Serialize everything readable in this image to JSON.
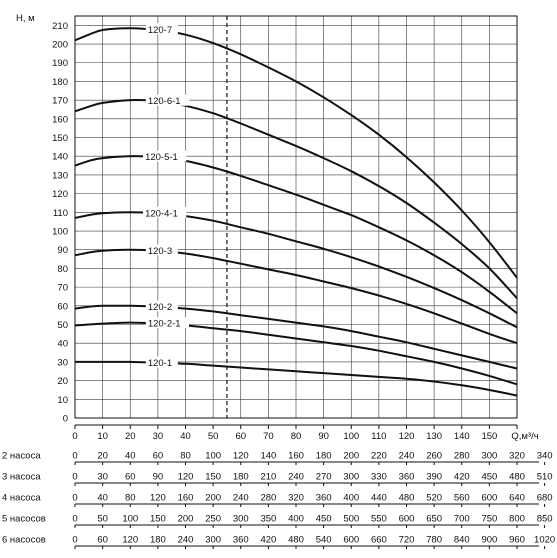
{
  "chart_data": {
    "type": "line",
    "title": "",
    "ylabel": "H, м",
    "xlabel": "Q,м³/ч",
    "xlim": [
      0,
      160
    ],
    "ylim": [
      0,
      215
    ],
    "x_ticks": [
      0,
      10,
      20,
      30,
      40,
      50,
      60,
      70,
      80,
      90,
      100,
      110,
      120,
      130,
      140,
      150
    ],
    "y_ticks": [
      0,
      10,
      20,
      30,
      40,
      50,
      60,
      70,
      80,
      90,
      100,
      110,
      120,
      130,
      140,
      150,
      160,
      170,
      180,
      190,
      200,
      210
    ],
    "grid": true,
    "reference_line_x": 55,
    "series": [
      {
        "name": "120-7",
        "x": [
          0,
          5,
          10,
          20,
          30,
          40,
          50,
          60,
          70,
          80,
          90,
          100,
          110,
          120,
          130,
          140,
          150,
          160
        ],
        "y": [
          202,
          205,
          207.5,
          208.5,
          207.5,
          205,
          200.5,
          194.5,
          187.5,
          180,
          171.5,
          162,
          151.5,
          139.5,
          126,
          111,
          94,
          75
        ]
      },
      {
        "name": "120-6-1",
        "x": [
          0,
          5,
          10,
          20,
          30,
          40,
          50,
          60,
          70,
          80,
          90,
          100,
          110,
          120,
          130,
          140,
          150,
          160
        ],
        "y": [
          164,
          166.5,
          168.5,
          170,
          169.5,
          167,
          163,
          157.5,
          151.5,
          145.5,
          139,
          132,
          124,
          115,
          104.5,
          93,
          80,
          64
        ]
      },
      {
        "name": "120-5-1",
        "x": [
          0,
          5,
          10,
          20,
          30,
          40,
          50,
          60,
          70,
          80,
          90,
          100,
          110,
          120,
          130,
          140,
          150,
          160
        ],
        "y": [
          135,
          137.5,
          139,
          140,
          139.5,
          137.5,
          134,
          129.5,
          124.5,
          119.5,
          114,
          108.5,
          102,
          95,
          87,
          78,
          67.5,
          56
        ]
      },
      {
        "name": "120-4-1",
        "x": [
          0,
          5,
          10,
          20,
          30,
          40,
          50,
          60,
          70,
          80,
          90,
          100,
          110,
          120,
          130,
          140,
          150,
          160
        ],
        "y": [
          107,
          108.5,
          109.5,
          110,
          109.5,
          108,
          105.5,
          102,
          98.5,
          94.5,
          90.5,
          86,
          81,
          75.5,
          69.5,
          63,
          56,
          48.5
        ]
      },
      {
        "name": "120-3",
        "x": [
          0,
          5,
          10,
          20,
          30,
          40,
          50,
          60,
          70,
          80,
          90,
          100,
          110,
          120,
          130,
          140,
          150,
          160
        ],
        "y": [
          87,
          88.5,
          89.5,
          90,
          89.5,
          88,
          85.5,
          82.5,
          79.5,
          76.5,
          73,
          69.5,
          65.5,
          61,
          56,
          50.5,
          45,
          40
        ]
      },
      {
        "name": "120-2",
        "x": [
          0,
          5,
          10,
          20,
          30,
          40,
          50,
          60,
          70,
          80,
          90,
          100,
          110,
          120,
          130,
          140,
          150,
          160
        ],
        "y": [
          58.5,
          59.5,
          60,
          60,
          59.5,
          58.5,
          57,
          55,
          53,
          51,
          49,
          46.5,
          43.5,
          40.5,
          37,
          33.5,
          30,
          26.5
        ]
      },
      {
        "name": "120-2-1",
        "x": [
          0,
          5,
          10,
          20,
          30,
          40,
          50,
          60,
          70,
          80,
          90,
          100,
          110,
          120,
          130,
          140,
          150,
          160
        ],
        "y": [
          49.5,
          50,
          50.5,
          51,
          50.5,
          49.5,
          48,
          46.5,
          44.5,
          42.5,
          40.5,
          38.5,
          36,
          33,
          30,
          26.5,
          22.5,
          18
        ]
      },
      {
        "name": "120-1",
        "x": [
          0,
          10,
          20,
          30,
          40,
          50,
          60,
          70,
          80,
          90,
          100,
          110,
          120,
          130,
          140,
          150,
          160
        ],
        "y": [
          30,
          30,
          30,
          29.5,
          29,
          28,
          27,
          26,
          25,
          24,
          23,
          22,
          21,
          19.5,
          17.5,
          15,
          12
        ]
      }
    ],
    "qaxis_tail_ticks": [
      "Q,м³/ч"
    ],
    "multi_pump_rows": [
      {
        "label": "2 насоса",
        "values": [
          "0",
          "20",
          "40",
          "60",
          "80",
          "100",
          "120",
          "140",
          "160",
          "180",
          "200",
          "220",
          "240",
          "260",
          "280",
          "300",
          "320",
          "340"
        ]
      },
      {
        "label": "3 насоса",
        "values": [
          "0",
          "30",
          "60",
          "90",
          "120",
          "150",
          "180",
          "210",
          "240",
          "270",
          "300",
          "330",
          "360",
          "390",
          "420",
          "450",
          "480",
          "510"
        ]
      },
      {
        "label": "4 насоса",
        "values": [
          "0",
          "40",
          "80",
          "120",
          "160",
          "200",
          "240",
          "280",
          "320",
          "360",
          "400",
          "440",
          "480",
          "520",
          "560",
          "600",
          "640",
          "680"
        ]
      },
      {
        "label": "5 насосов",
        "values": [
          "0",
          "50",
          "100",
          "150",
          "200",
          "250",
          "300",
          "350",
          "400",
          "450",
          "500",
          "550",
          "600",
          "650",
          "700",
          "750",
          "800",
          "850"
        ]
      },
      {
        "label": "6 насосов",
        "values": [
          "0",
          "60",
          "120",
          "180",
          "240",
          "300",
          "360",
          "420",
          "480",
          "540",
          "600",
          "660",
          "720",
          "780",
          "840",
          "900",
          "960",
          "1020"
        ]
      }
    ]
  }
}
